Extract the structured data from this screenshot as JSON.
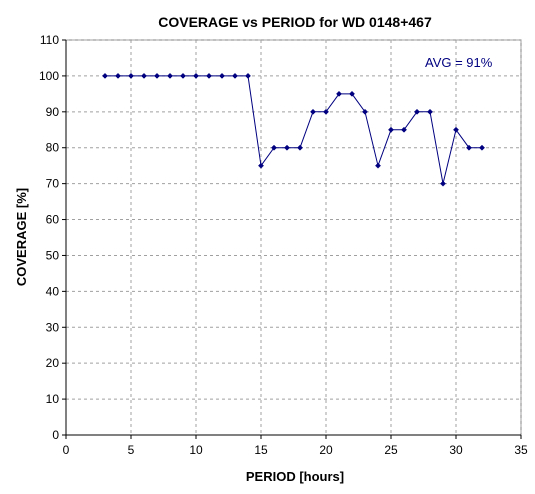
{
  "chart_data": {
    "type": "line",
    "title": "COVERAGE vs PERIOD for WD 0148+467",
    "xlabel": "PERIOD [hours]",
    "ylabel": "COVERAGE [%]",
    "xlim": [
      0,
      35
    ],
    "ylim": [
      0,
      110
    ],
    "x_ticks": [
      "0",
      "5",
      "10",
      "15",
      "20",
      "25",
      "30",
      "35"
    ],
    "y_ticks": [
      "0",
      "10",
      "20",
      "30",
      "40",
      "50",
      "60",
      "70",
      "80",
      "90",
      "100",
      "110"
    ],
    "grid": true,
    "legend": "none",
    "annotation": "AVG = 91%",
    "series": [
      {
        "color": "#000080",
        "x": [
          3,
          4,
          5,
          6,
          7,
          8,
          9,
          10,
          11,
          12,
          13,
          14,
          15,
          16,
          17,
          18,
          19,
          20,
          21,
          22,
          23,
          24,
          25,
          26,
          27,
          28,
          29,
          30,
          31,
          32
        ],
        "y": [
          100,
          100,
          100,
          100,
          100,
          100,
          100,
          100,
          100,
          100,
          100,
          100,
          75,
          80,
          80,
          80,
          90,
          90,
          95,
          95,
          90,
          75,
          85,
          85,
          90,
          90,
          70,
          85,
          80,
          80
        ]
      }
    ]
  }
}
